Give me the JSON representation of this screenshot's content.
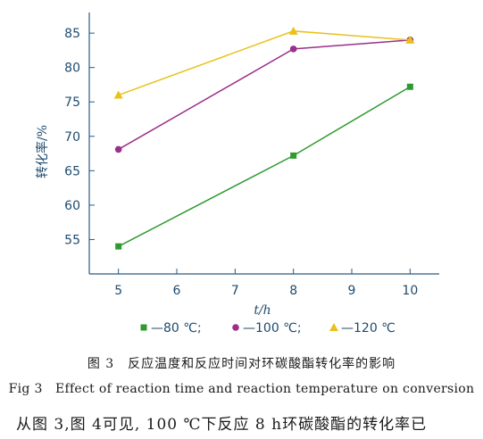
{
  "chart_data": {
    "type": "line",
    "xlabel": "t/h",
    "ylabel": "转化率/%",
    "xlim": [
      4.5,
      10.5
    ],
    "ylim": [
      50,
      88
    ],
    "x_ticks": [
      5,
      6,
      7,
      8,
      9,
      10
    ],
    "y_ticks": [
      55,
      60,
      65,
      70,
      75,
      80,
      85
    ],
    "grid": false,
    "legend_position": "bottom",
    "series": [
      {
        "name": "—80 ℃;",
        "color": "#2f9a2f",
        "marker": "square",
        "x": [
          5,
          8,
          10
        ],
        "y": [
          54,
          67.2,
          77.2
        ]
      },
      {
        "name": "—100 ℃;",
        "color": "#9b2f8a",
        "marker": "circle",
        "x": [
          5,
          8,
          10
        ],
        "y": [
          68.1,
          82.7,
          84
        ]
      },
      {
        "name": "—120 ℃",
        "color": "#e8c21a",
        "marker": "triangle",
        "x": [
          5,
          8,
          10
        ],
        "y": [
          76,
          85.3,
          84
        ]
      }
    ]
  },
  "caption": {
    "cn": "图 3　反应温度和反应时间对环碳酸酯转化率的影响",
    "en": "Fig 3　Effect of reaction time and reaction temperature on conversion"
  },
  "body_text": "从图 3,图 4可见, 100 ℃下反应 8 h环碳酸酯的转化率已"
}
